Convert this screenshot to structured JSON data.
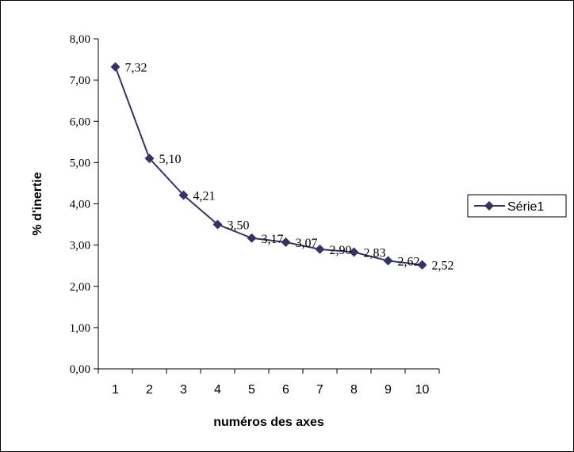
{
  "chart_data": {
    "type": "line",
    "x": [
      1,
      2,
      3,
      4,
      5,
      6,
      7,
      8,
      9,
      10
    ],
    "categories": [
      "1",
      "2",
      "3",
      "4",
      "5",
      "6",
      "7",
      "8",
      "9",
      "10"
    ],
    "series": [
      {
        "name": "Série1",
        "values": [
          7.32,
          5.1,
          4.21,
          3.5,
          3.17,
          3.07,
          2.9,
          2.83,
          2.62,
          2.52
        ],
        "labels": [
          "7,32",
          "5,10",
          "4,21",
          "3,50",
          "3,17",
          "3,07",
          "2,90",
          "2,83",
          "2,62",
          "2,52"
        ],
        "color": "#333366",
        "marker": "diamond"
      }
    ],
    "title": "",
    "xlabel": "numéros des axes",
    "ylabel": "% d'inertie",
    "ylim": [
      0,
      8
    ],
    "yticks": [
      "0,00",
      "1,00",
      "2,00",
      "3,00",
      "4,00",
      "5,00",
      "6,00",
      "7,00",
      "8,00"
    ],
    "grid": false,
    "legend": "right"
  }
}
